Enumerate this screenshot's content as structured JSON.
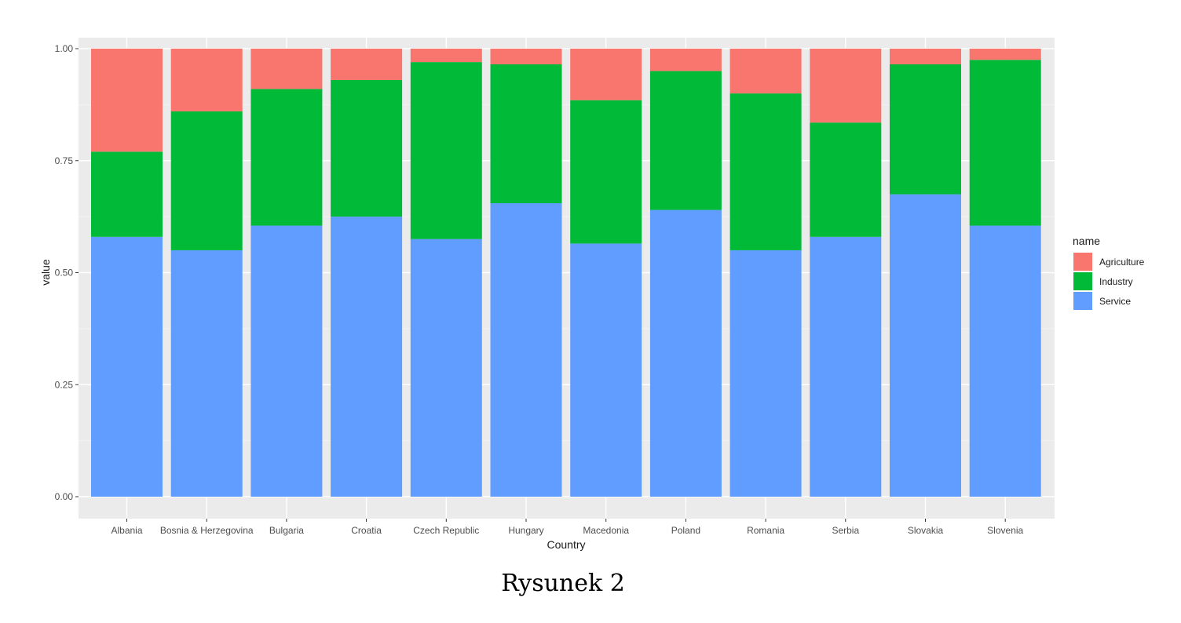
{
  "caption": "Rysunek 2",
  "chart_data": {
    "type": "bar",
    "stacked": true,
    "xlabel": "Country",
    "ylabel": "value",
    "ylim": [
      0,
      1
    ],
    "yticks": [
      "0.00",
      "0.25",
      "0.50",
      "0.75",
      "1.00"
    ],
    "grid": true,
    "legend_position": "right",
    "legend_title": "name",
    "categories": [
      "Albania",
      "Bosnia & Herzegovina",
      "Bulgaria",
      "Croatia",
      "Czech Republic",
      "Hungary",
      "Macedonia",
      "Poland",
      "Romania",
      "Serbia",
      "Slovakia",
      "Slovenia"
    ],
    "series": [
      {
        "name": "Service",
        "color": "#619CFF",
        "values": [
          0.58,
          0.55,
          0.605,
          0.625,
          0.575,
          0.655,
          0.565,
          0.64,
          0.55,
          0.58,
          0.675,
          0.605
        ]
      },
      {
        "name": "Industry",
        "color": "#00BA38",
        "values": [
          0.19,
          0.31,
          0.305,
          0.305,
          0.395,
          0.31,
          0.32,
          0.31,
          0.35,
          0.255,
          0.29,
          0.37
        ]
      },
      {
        "name": "Agriculture",
        "color": "#F8766D",
        "values": [
          0.23,
          0.14,
          0.09,
          0.07,
          0.03,
          0.035,
          0.115,
          0.05,
          0.1,
          0.165,
          0.035,
          0.025
        ]
      }
    ],
    "legend_order": [
      "Agriculture",
      "Industry",
      "Service"
    ]
  }
}
